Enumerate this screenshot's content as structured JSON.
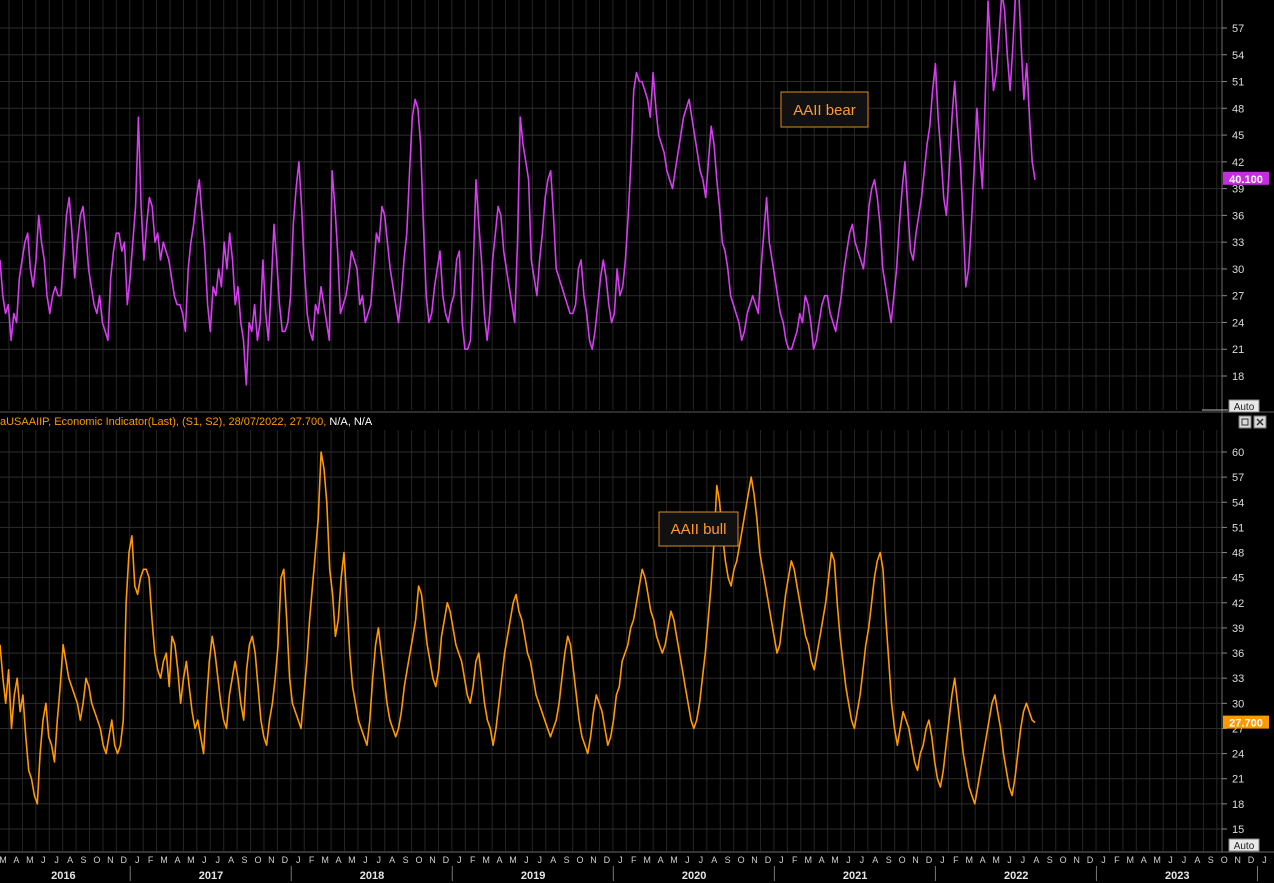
{
  "chart_data": [
    {
      "type": "line",
      "annotation": "AAII bear",
      "ylim": [
        15,
        59
      ],
      "ticks": [
        18,
        21,
        24,
        27,
        30,
        33,
        36,
        39,
        42,
        45,
        48,
        51,
        54,
        57
      ],
      "last_value": "40.100",
      "color": "#d63cf0",
      "auto_button": "Auto",
      "series": [
        {
          "values": [
            31,
            27,
            25,
            26,
            22,
            25,
            24,
            29,
            31,
            33,
            34,
            30,
            28,
            31,
            36,
            33,
            31,
            27,
            25,
            27,
            28,
            27,
            27,
            31,
            36,
            38,
            34,
            29,
            33,
            36,
            37,
            34,
            30,
            28,
            26,
            25,
            27,
            24,
            23,
            22,
            29,
            32,
            34,
            34,
            32,
            33,
            26,
            29,
            33,
            37,
            47,
            37,
            31,
            35,
            38,
            37,
            33,
            34,
            31,
            33,
            32,
            31,
            29,
            27,
            26,
            26,
            25,
            23,
            30,
            33,
            35,
            38,
            40,
            36,
            32,
            26,
            23,
            28,
            27,
            30,
            28,
            33,
            30,
            34,
            31,
            26,
            28,
            24,
            22,
            17,
            24,
            23,
            26,
            22,
            24,
            31,
            25,
            22,
            28,
            35,
            31,
            26,
            23,
            23,
            24,
            27,
            35,
            39,
            42,
            37,
            30,
            25,
            23,
            22,
            26,
            25,
            28,
            26,
            24,
            22,
            41,
            37,
            32,
            25,
            26,
            27,
            29,
            32,
            31,
            30,
            26,
            27,
            24,
            25,
            26,
            30,
            34,
            33,
            37,
            36,
            33,
            30,
            28,
            26,
            24,
            27,
            31,
            34,
            41,
            47,
            49,
            48,
            44,
            35,
            27,
            24,
            25,
            28,
            30,
            32,
            27,
            25,
            24,
            26,
            27,
            31,
            32,
            24,
            21,
            21,
            22,
            30,
            40,
            35,
            31,
            25,
            22,
            25,
            31,
            34,
            37,
            36,
            32,
            30,
            28,
            26,
            24,
            33,
            47,
            44,
            42,
            40,
            31,
            29,
            27,
            31,
            34,
            38,
            40,
            41,
            36,
            30,
            29,
            28,
            27,
            26,
            25,
            25,
            26,
            30,
            31,
            27,
            25,
            22,
            21,
            23,
            26,
            29,
            31,
            29,
            26,
            24,
            25,
            30,
            27,
            28,
            31,
            36,
            42,
            50,
            52,
            51,
            51,
            50,
            49,
            47,
            52,
            48,
            45,
            44,
            43,
            41,
            40,
            39,
            41,
            43,
            45,
            47,
            48,
            49,
            47,
            45,
            43,
            41,
            40,
            38,
            42,
            46,
            44,
            40,
            37,
            33,
            32,
            30,
            27,
            26,
            25,
            24,
            22,
            23,
            25,
            26,
            27,
            26,
            25,
            30,
            34,
            38,
            33,
            31,
            29,
            27,
            25,
            24,
            22,
            21,
            21,
            22,
            23,
            25,
            24,
            27,
            26,
            24,
            21,
            22,
            24,
            26,
            27,
            27,
            25,
            24,
            23,
            25,
            27,
            30,
            32,
            34,
            35,
            33,
            32,
            31,
            30,
            33,
            37,
            39,
            40,
            38,
            35,
            30,
            28,
            26,
            24,
            27,
            30,
            35,
            39,
            42,
            37,
            32,
            31,
            34,
            36,
            38,
            41,
            44,
            46,
            50,
            53,
            47,
            43,
            38,
            36,
            41,
            47,
            51,
            46,
            42,
            36,
            28,
            30,
            35,
            41,
            48,
            43,
            39,
            49,
            60,
            55,
            50,
            52,
            56,
            61,
            59,
            54,
            50,
            55,
            61,
            62,
            55,
            49,
            53,
            47,
            42,
            40
          ],
          "x_start": 0,
          "x_end": 1035
        }
      ]
    },
    {
      "type": "line",
      "annotation": "AAII bull",
      "legend_text": "aUSAAIIP, Economic Indicator(Last), (S1, S2), 28/07/2022, 27.700, N/A, N/A",
      "ylim": [
        14,
        62
      ],
      "ticks": [
        15,
        18,
        21,
        24,
        27,
        30,
        33,
        36,
        39,
        42,
        45,
        48,
        51,
        54,
        57,
        60
      ],
      "last_value": "27.700",
      "color": "#ff9900",
      "auto_button": "Auto",
      "series": [
        {
          "values": [
            37,
            33,
            30,
            34,
            27,
            31,
            33,
            29,
            31,
            26,
            22,
            21,
            19,
            18,
            24,
            28,
            30,
            26,
            25,
            23,
            28,
            32,
            37,
            35,
            33,
            32,
            31,
            30,
            28,
            30,
            33,
            32,
            30,
            29,
            28,
            27,
            25,
            24,
            26,
            28,
            25,
            24,
            25,
            28,
            42,
            48,
            50,
            44,
            43,
            45,
            46,
            46,
            45,
            40,
            36,
            34,
            33,
            35,
            36,
            32,
            38,
            37,
            34,
            30,
            33,
            35,
            32,
            29,
            27,
            28,
            26,
            24,
            30,
            35,
            38,
            36,
            33,
            30,
            28,
            27,
            31,
            33,
            35,
            33,
            30,
            28,
            34,
            37,
            38,
            36,
            32,
            28,
            26,
            25,
            28,
            30,
            33,
            37,
            45,
            46,
            40,
            33,
            30,
            29,
            28,
            27,
            31,
            35,
            40,
            44,
            48,
            52,
            60,
            58,
            54,
            46,
            43,
            38,
            40,
            45,
            48,
            42,
            36,
            32,
            30,
            28,
            27,
            26,
            25,
            28,
            33,
            37,
            39,
            36,
            33,
            30,
            28,
            27,
            26,
            27,
            29,
            32,
            34,
            36,
            38,
            40,
            44,
            43,
            40,
            37,
            35,
            33,
            32,
            34,
            38,
            40,
            42,
            41,
            39,
            37,
            36,
            35,
            33,
            31,
            30,
            32,
            35,
            36,
            33,
            30,
            28,
            27,
            25,
            27,
            30,
            33,
            36,
            38,
            40,
            42,
            43,
            41,
            40,
            38,
            36,
            35,
            33,
            31,
            30,
            29,
            28,
            27,
            26,
            27,
            28,
            30,
            33,
            36,
            38,
            37,
            34,
            31,
            28,
            26,
            25,
            24,
            26,
            29,
            31,
            30,
            29,
            27,
            25,
            26,
            28,
            31,
            32,
            35,
            36,
            37,
            39,
            40,
            42,
            44,
            46,
            45,
            43,
            41,
            40,
            38,
            37,
            36,
            37,
            39,
            41,
            40,
            38,
            36,
            34,
            32,
            30,
            28,
            27,
            28,
            30,
            33,
            36,
            40,
            44,
            49,
            56,
            54,
            50,
            47,
            45,
            44,
            46,
            47,
            49,
            51,
            53,
            55,
            57,
            55,
            52,
            48,
            46,
            44,
            42,
            40,
            38,
            36,
            37,
            40,
            43,
            45,
            47,
            46,
            44,
            42,
            40,
            38,
            37,
            35,
            34,
            36,
            38,
            40,
            42,
            45,
            48,
            47,
            42,
            38,
            35,
            32,
            30,
            28,
            27,
            29,
            31,
            34,
            37,
            39,
            42,
            45,
            47,
            48,
            46,
            40,
            35,
            30,
            27,
            25,
            27,
            29,
            28,
            27,
            25,
            23,
            22,
            24,
            25,
            27,
            28,
            26,
            23,
            21,
            20,
            22,
            25,
            28,
            31,
            33,
            30,
            27,
            24,
            22,
            20,
            19,
            18,
            20,
            22,
            24,
            26,
            28,
            30,
            31,
            29,
            27,
            24,
            22,
            20,
            19,
            21,
            24,
            27,
            29,
            30,
            29,
            28,
            27.7
          ],
          "x_start": 0,
          "x_end": 1035
        }
      ]
    }
  ],
  "x_axis": {
    "months": [
      "M",
      "A",
      "M",
      "J",
      "J",
      "A",
      "S",
      "O",
      "N",
      "D",
      "J",
      "F",
      "M",
      "A",
      "M",
      "J",
      "J",
      "A",
      "S",
      "O",
      "N",
      "D",
      "J",
      "F",
      "M",
      "A",
      "M",
      "J",
      "J",
      "A",
      "S",
      "O",
      "N",
      "D",
      "J",
      "F",
      "M",
      "A",
      "M",
      "J",
      "J",
      "A",
      "S",
      "O",
      "N",
      "D",
      "J",
      "F",
      "M",
      "A",
      "M",
      "J",
      "J",
      "A",
      "S",
      "O",
      "N",
      "D",
      "J",
      "F",
      "M",
      "A",
      "M",
      "J",
      "J",
      "A",
      "S",
      "O",
      "N",
      "D",
      "J",
      "F",
      "M",
      "A",
      "M",
      "J",
      "J",
      "A",
      "S",
      "O",
      "N",
      "D",
      "J",
      "F",
      "M",
      "A",
      "M",
      "J",
      "J",
      "A",
      "S",
      "O",
      "N",
      "D",
      "J",
      "F",
      "M",
      "A",
      "M",
      "J",
      "J",
      "A",
      "S",
      "O"
    ],
    "years": [
      "2016",
      "2017",
      "2018",
      "2019",
      "2020",
      "2021",
      "2022",
      "2023"
    ]
  },
  "controls": {
    "restore_icon": "restore-icon",
    "close_icon": "close-icon"
  }
}
